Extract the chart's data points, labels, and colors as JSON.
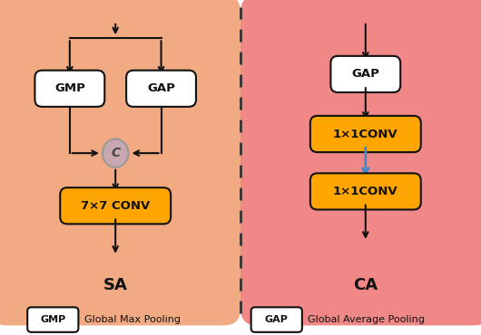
{
  "fig_width": 5.3,
  "fig_height": 3.7,
  "dpi": 100,
  "bg_color": "#ffffff",
  "sa_bg": "#F2AA82",
  "ca_bg": "#F08888",
  "box_white": "#ffffff",
  "box_orange": "#FFA500",
  "concat_circle_fc": "#C8A8B0",
  "concat_circle_ec": "#999999",
  "arrow_black": "#111111",
  "arrow_blue": "#4488CC",
  "dashed_line": "#333333",
  "text_dark": "#111111",
  "sa_label": "SA",
  "ca_label": "CA",
  "gmp_text": "GMP",
  "gap_text": "GAP",
  "conv7_text": "7×7 CONV",
  "conv1a_text": "1×1CONV",
  "conv1b_text": "1×1CONV",
  "concat_text": "C",
  "legend_gmp": "GMP",
  "legend_gap": "GAP",
  "legend_gmp_desc": "Global Max Pooling",
  "legend_gap_desc": "Global Average Pooling",
  "xlim": [
    0,
    10
  ],
  "ylim": [
    0,
    7
  ]
}
